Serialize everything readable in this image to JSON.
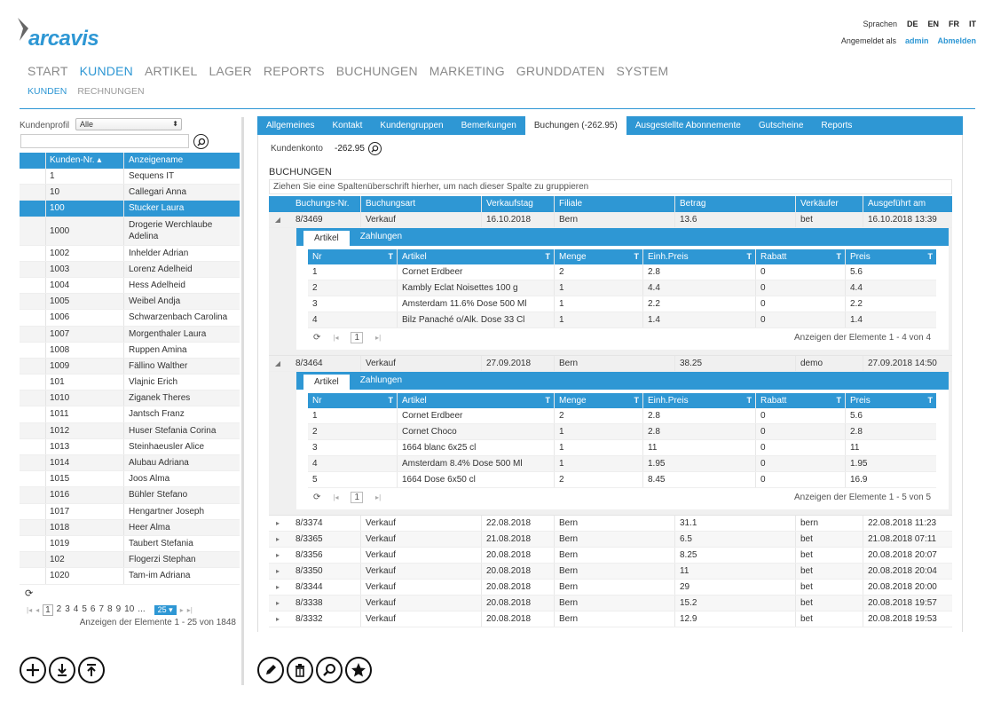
{
  "header": {
    "logo_text": "arcavis",
    "languages_label": "Sprachen",
    "languages": [
      "DE",
      "EN",
      "FR",
      "IT"
    ],
    "logged_in_label": "Angemeldet als",
    "user": "admin",
    "logout": "Abmelden"
  },
  "nav": {
    "main": [
      "START",
      "KUNDEN",
      "ARTIKEL",
      "LAGER",
      "REPORTS",
      "BUCHUNGEN",
      "MARKETING",
      "GRUNDDATEN",
      "SYSTEM"
    ],
    "main_active": "KUNDEN",
    "sub": [
      "KUNDEN",
      "RECHNUNGEN"
    ],
    "sub_active": "KUNDEN"
  },
  "left": {
    "profil_label": "Kundenprofil",
    "profil_value": "Alle",
    "columns": [
      "Kunden-Nr. ▴",
      "Anzeigename"
    ],
    "rows": [
      {
        "nr": "1",
        "name": "Sequens IT"
      },
      {
        "nr": "10",
        "name": "Callegari Anna"
      },
      {
        "nr": "100",
        "name": "Stucker Laura",
        "selected": true
      },
      {
        "nr": "1000",
        "name": "Drogerie Werchlaube Adelina",
        "tall": true
      },
      {
        "nr": "1002",
        "name": "Inhelder Adrian"
      },
      {
        "nr": "1003",
        "name": "Lorenz Adelheid"
      },
      {
        "nr": "1004",
        "name": "Hess Adelheid"
      },
      {
        "nr": "1005",
        "name": "Weibel Andja"
      },
      {
        "nr": "1006",
        "name": "Schwarzenbach Carolina"
      },
      {
        "nr": "1007",
        "name": "Morgenthaler Laura"
      },
      {
        "nr": "1008",
        "name": "Ruppen Amina"
      },
      {
        "nr": "1009",
        "name": "Fällino Walther"
      },
      {
        "nr": "101",
        "name": "Vlajnic Erich"
      },
      {
        "nr": "1010",
        "name": "Ziganek Theres"
      },
      {
        "nr": "1011",
        "name": "Jantsch Franz"
      },
      {
        "nr": "1012",
        "name": "Huser Stefania Corina"
      },
      {
        "nr": "1013",
        "name": "Steinhaeusler Alice"
      },
      {
        "nr": "1014",
        "name": "Alubau Adriana"
      },
      {
        "nr": "1015",
        "name": "Joos Alma"
      },
      {
        "nr": "1016",
        "name": "Bühler Stefano"
      },
      {
        "nr": "1017",
        "name": "Hengartner Joseph"
      },
      {
        "nr": "1018",
        "name": "Heer Alma"
      },
      {
        "nr": "1019",
        "name": "Taubert Stefania"
      },
      {
        "nr": "102",
        "name": "Flogerzi Stephan"
      },
      {
        "nr": "1020",
        "name": "Tam-im Adriana"
      }
    ],
    "pages": [
      "1",
      "2",
      "3",
      "4",
      "5",
      "6",
      "7",
      "8",
      "9",
      "10",
      "..."
    ],
    "page_size": "25",
    "count_text": "Anzeigen der Elemente 1 - 25 von 1848"
  },
  "tabs": [
    "Allgemeines",
    "Kontakt",
    "Kundengruppen",
    "Bemerkungen",
    "Buchungen (-262.95)",
    "Ausgestellte Abonnemente",
    "Gutscheine",
    "Reports"
  ],
  "active_tab": "Buchungen (-262.95)",
  "konto": {
    "label": "Kundenkonto",
    "value": "-262.95"
  },
  "buchungen": {
    "title": "BUCHUNGEN",
    "group_hint": "Ziehen Sie eine Spaltenüberschrift hierher, um nach dieser Spalte zu gruppieren",
    "columns": [
      "Buchungs-Nr.",
      "Buchungsart",
      "Verkaufstag",
      "Filiale",
      "Betrag",
      "Verkäufer",
      "Ausgeführt am"
    ],
    "detail_tabs": [
      "Artikel",
      "Zahlungen"
    ],
    "detail_columns": [
      "Nr",
      "Artikel",
      "Menge",
      "Einh.Preis",
      "Rabatt",
      "Preis"
    ],
    "rows": [
      {
        "nr": "8/3469",
        "art": "Verkauf",
        "tag": "16.10.2018",
        "filiale": "Bern",
        "betrag": "13.6",
        "verk": "bet",
        "am": "16.10.2018 13:39",
        "expanded": true,
        "items": [
          {
            "nr": "1",
            "artikel": "Cornet Erdbeer",
            "menge": "2",
            "preis_e": "2.8",
            "rabatt": "0",
            "preis": "5.6"
          },
          {
            "nr": "2",
            "artikel": "Kambly Eclat Noisettes 100 g",
            "menge": "1",
            "preis_e": "4.4",
            "rabatt": "0",
            "preis": "4.4"
          },
          {
            "nr": "3",
            "artikel": "Amsterdam 11.6% Dose 500 Ml",
            "menge": "1",
            "preis_e": "2.2",
            "rabatt": "0",
            "preis": "2.2"
          },
          {
            "nr": "4",
            "artikel": "Bilz Panaché o/Alk. Dose 33 Cl",
            "menge": "1",
            "preis_e": "1.4",
            "rabatt": "0",
            "preis": "1.4"
          }
        ],
        "page": "1",
        "count_text": "Anzeigen der Elemente 1 - 4 von 4"
      },
      {
        "nr": "8/3464",
        "art": "Verkauf",
        "tag": "27.09.2018",
        "filiale": "Bern",
        "betrag": "38.25",
        "verk": "demo",
        "am": "27.09.2018 14:50",
        "expanded": true,
        "items": [
          {
            "nr": "1",
            "artikel": "Cornet Erdbeer",
            "menge": "2",
            "preis_e": "2.8",
            "rabatt": "0",
            "preis": "5.6"
          },
          {
            "nr": "2",
            "artikel": "Cornet Choco",
            "menge": "1",
            "preis_e": "2.8",
            "rabatt": "0",
            "preis": "2.8"
          },
          {
            "nr": "3",
            "artikel": "1664 blanc 6x25 cl",
            "menge": "1",
            "preis_e": "11",
            "rabatt": "0",
            "preis": "11"
          },
          {
            "nr": "4",
            "artikel": "Amsterdam 8.4% Dose 500 Ml",
            "menge": "1",
            "preis_e": "1.95",
            "rabatt": "0",
            "preis": "1.95"
          },
          {
            "nr": "5",
            "artikel": "1664 Dose 6x50 cl",
            "menge": "2",
            "preis_e": "8.45",
            "rabatt": "0",
            "preis": "16.9"
          }
        ],
        "page": "1",
        "count_text": "Anzeigen der Elemente 1 - 5 von 5"
      },
      {
        "nr": "8/3374",
        "art": "Verkauf",
        "tag": "22.08.2018",
        "filiale": "Bern",
        "betrag": "31.1",
        "verk": "bern",
        "am": "22.08.2018 11:23"
      },
      {
        "nr": "8/3365",
        "art": "Verkauf",
        "tag": "21.08.2018",
        "filiale": "Bern",
        "betrag": "6.5",
        "verk": "bet",
        "am": "21.08.2018 07:11"
      },
      {
        "nr": "8/3356",
        "art": "Verkauf",
        "tag": "20.08.2018",
        "filiale": "Bern",
        "betrag": "8.25",
        "verk": "bet",
        "am": "20.08.2018 20:07"
      },
      {
        "nr": "8/3350",
        "art": "Verkauf",
        "tag": "20.08.2018",
        "filiale": "Bern",
        "betrag": "11",
        "verk": "bet",
        "am": "20.08.2018 20:04"
      },
      {
        "nr": "8/3344",
        "art": "Verkauf",
        "tag": "20.08.2018",
        "filiale": "Bern",
        "betrag": "29",
        "verk": "bet",
        "am": "20.08.2018 20:00"
      },
      {
        "nr": "8/3338",
        "art": "Verkauf",
        "tag": "20.08.2018",
        "filiale": "Bern",
        "betrag": "15.2",
        "verk": "bet",
        "am": "20.08.2018 19:57"
      },
      {
        "nr": "8/3332",
        "art": "Verkauf",
        "tag": "20.08.2018",
        "filiale": "Bern",
        "betrag": "12.9",
        "verk": "bet",
        "am": "20.08.2018 19:53"
      }
    ]
  },
  "colors": {
    "accent": "#2e97d4"
  },
  "icons": {
    "left_actions": [
      "plus-icon",
      "download-icon",
      "upload-icon"
    ],
    "right_actions": [
      "pencil-icon",
      "trash-icon",
      "search-icon",
      "star-icon"
    ]
  }
}
